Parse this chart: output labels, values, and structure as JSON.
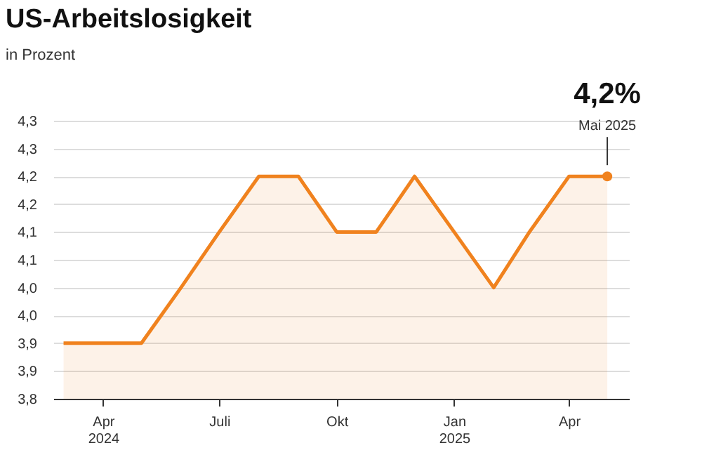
{
  "chart_data": {
    "type": "area",
    "title": "US-Arbeitslosigkeit",
    "subtitle": "in Prozent",
    "x": [
      "2024-03",
      "2024-04",
      "2024-05",
      "2024-06",
      "2024-07",
      "2024-08",
      "2024-09",
      "2024-10",
      "2024-11",
      "2024-12",
      "2025-01",
      "2025-02",
      "2025-03",
      "2025-04",
      "2025-05"
    ],
    "series": [
      {
        "color": "#f0821e",
        "values": [
          3.9,
          3.9,
          3.9,
          4.0,
          4.1,
          4.2,
          4.2,
          4.1,
          4.1,
          4.2,
          4.1,
          4.0,
          4.1,
          4.2,
          4.2
        ]
      }
    ],
    "xlim": [
      "2024-02-22",
      "2025-05-18"
    ],
    "xticks": [
      {
        "value": "2024-04",
        "label": "Apr\n2024"
      },
      {
        "value": "2024-07",
        "label": "Juli"
      },
      {
        "value": "2024-10",
        "label": "Okt"
      },
      {
        "value": "2025-01",
        "label": "Jan\n2025"
      },
      {
        "value": "2025-04",
        "label": "Apr"
      }
    ],
    "ylim": [
      3.8,
      4.3
    ],
    "yticks": [
      {
        "value": 3.8,
        "label": "3,8"
      },
      {
        "value": 3.85,
        "label": "3,9"
      },
      {
        "value": 3.9,
        "label": "3,9"
      },
      {
        "value": 3.95,
        "label": "4,0"
      },
      {
        "value": 4.0,
        "label": "4,0"
      },
      {
        "value": 4.05,
        "label": "4,1"
      },
      {
        "value": 4.1,
        "label": "4,1"
      },
      {
        "value": 4.15,
        "label": "4,2"
      },
      {
        "value": 4.2,
        "label": "4,2"
      },
      {
        "value": 4.25,
        "label": "4,3"
      },
      {
        "value": 4.3,
        "label": "4,3"
      }
    ],
    "grid": "y",
    "annotations": [
      {
        "text": "4,2%",
        "x": "2025-05",
        "y": 4.2
      },
      {
        "text": "Mai 2025",
        "x": "2025-05",
        "y": 4.2
      }
    ]
  }
}
